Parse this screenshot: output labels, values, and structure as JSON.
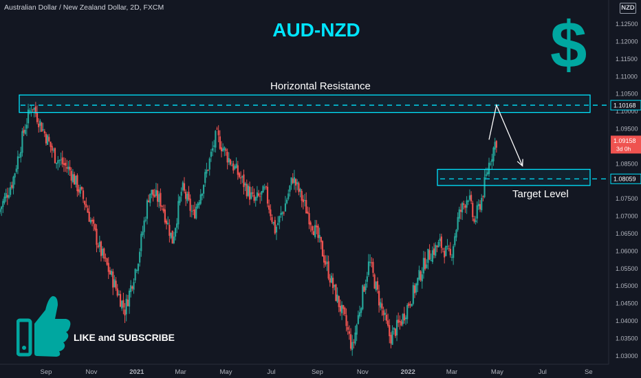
{
  "header": "Australian Dollar / New Zealand Dollar, 2D, FXCM",
  "currency_badge": "NZD",
  "title": "AUD-NZD",
  "dollar_sign": "$",
  "annotations": {
    "resistance_label": "Horizontal Resistance",
    "target_label": "Target Level",
    "subscribe_label": "LIKE and SUBSCRIBE"
  },
  "icons": [
    "dollar-sign-icon",
    "thumbs-up-icon",
    "arrow-icon"
  ],
  "colors": {
    "background": "#131722",
    "up": "#26a69a",
    "down": "#ef5350",
    "accent": "#00e5ff",
    "dollar": "#00a7a0"
  },
  "chart_data": {
    "type": "candlestick",
    "symbol": "AUD/NZD",
    "timeframe": "2D",
    "source": "FXCM",
    "ylim": [
      1.0275,
      1.1318
    ],
    "y_ticks": [
      "1.12500",
      "1.12000",
      "1.11500",
      "1.11000",
      "1.10500",
      "1.10000",
      "1.09500",
      "1.09000",
      "1.08500",
      "1.08000",
      "1.07500",
      "1.07000",
      "1.06500",
      "1.06000",
      "1.05500",
      "1.05000",
      "1.04500",
      "1.04000",
      "1.03500",
      "1.03000"
    ],
    "x_ticks": [
      "Sep",
      "Nov",
      "2021",
      "Mar",
      "May",
      "Jul",
      "Sep",
      "Nov",
      "2022",
      "Mar",
      "May",
      "Jul",
      "Se"
    ],
    "price_tags": [
      {
        "value": "1.10168",
        "sub": "",
        "style": "level"
      },
      {
        "value": "1.09158",
        "sub": "3d 0h",
        "style": "last"
      },
      {
        "value": "1.08059",
        "sub": "",
        "style": "level"
      }
    ],
    "levels": {
      "resistance": 1.10168,
      "target": 1.08059,
      "resistance_zone": [
        1.0996,
        1.1046
      ],
      "target_zone": [
        1.0787,
        1.0833
      ]
    },
    "projection": [
      {
        "date": "2022-04-20",
        "price": 1.0918
      },
      {
        "date": "2022-04-30",
        "price": 1.1017
      },
      {
        "date": "2022-06-04",
        "price": 1.0843
      }
    ],
    "path": [
      {
        "date": "2020-07-01",
        "price": 1.071
      },
      {
        "date": "2020-07-20",
        "price": 1.08
      },
      {
        "date": "2020-08-05",
        "price": 1.095
      },
      {
        "date": "2020-08-15",
        "price": 1.102
      },
      {
        "date": "2020-08-25",
        "price": 1.097
      },
      {
        "date": "2020-09-15",
        "price": 1.087
      },
      {
        "date": "2020-10-05",
        "price": 1.083
      },
      {
        "date": "2020-10-25",
        "price": 1.074
      },
      {
        "date": "2020-11-15",
        "price": 1.06
      },
      {
        "date": "2020-12-01",
        "price": 1.052
      },
      {
        "date": "2020-12-18",
        "price": 1.043
      },
      {
        "date": "2021-01-05",
        "price": 1.058
      },
      {
        "date": "2021-01-20",
        "price": 1.077
      },
      {
        "date": "2021-02-05",
        "price": 1.074
      },
      {
        "date": "2021-02-20",
        "price": 1.063
      },
      {
        "date": "2021-03-05",
        "price": 1.078
      },
      {
        "date": "2021-03-20",
        "price": 1.07
      },
      {
        "date": "2021-04-05",
        "price": 1.081
      },
      {
        "date": "2021-04-20",
        "price": 1.093
      },
      {
        "date": "2021-05-05",
        "price": 1.087
      },
      {
        "date": "2021-05-25",
        "price": 1.08
      },
      {
        "date": "2021-06-10",
        "price": 1.074
      },
      {
        "date": "2021-06-25",
        "price": 1.077
      },
      {
        "date": "2021-07-08",
        "price": 1.066
      },
      {
        "date": "2021-07-20",
        "price": 1.072
      },
      {
        "date": "2021-08-01",
        "price": 1.081
      },
      {
        "date": "2021-08-15",
        "price": 1.074
      },
      {
        "date": "2021-09-05",
        "price": 1.063
      },
      {
        "date": "2021-09-25",
        "price": 1.049
      },
      {
        "date": "2021-10-10",
        "price": 1.04
      },
      {
        "date": "2021-10-20",
        "price": 1.032
      },
      {
        "date": "2021-11-03",
        "price": 1.048
      },
      {
        "date": "2021-11-12",
        "price": 1.057
      },
      {
        "date": "2021-11-25",
        "price": 1.046
      },
      {
        "date": "2021-12-10",
        "price": 1.035
      },
      {
        "date": "2021-12-25",
        "price": 1.04
      },
      {
        "date": "2022-01-12",
        "price": 1.049
      },
      {
        "date": "2022-01-28",
        "price": 1.058
      },
      {
        "date": "2022-02-15",
        "price": 1.062
      },
      {
        "date": "2022-03-01",
        "price": 1.058
      },
      {
        "date": "2022-03-12",
        "price": 1.07
      },
      {
        "date": "2022-03-25",
        "price": 1.076
      },
      {
        "date": "2022-04-02",
        "price": 1.068
      },
      {
        "date": "2022-04-12",
        "price": 1.075
      },
      {
        "date": "2022-04-22",
        "price": 1.085
      },
      {
        "date": "2022-05-01",
        "price": 1.0915
      }
    ]
  }
}
